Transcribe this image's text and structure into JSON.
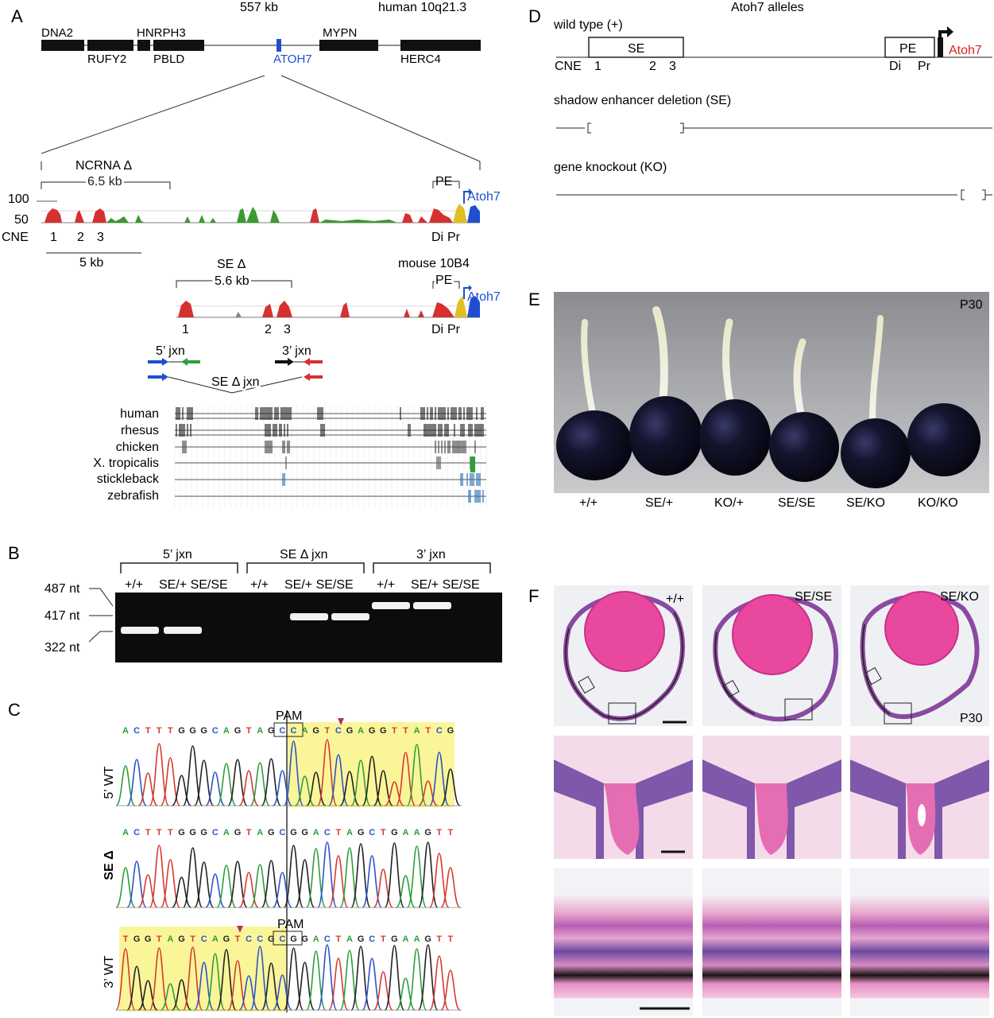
{
  "panels": {
    "A": "A",
    "B": "B",
    "C": "C",
    "D": "D",
    "E": "E",
    "F": "F"
  },
  "panelA": {
    "top_kb": "557 kb",
    "top_locus": "human 10q21.3",
    "genes_upper": [
      "DNA2",
      "HNRPH3",
      "MYPN"
    ],
    "genes_lower": [
      "RUFY2",
      "PBLD",
      "HERC4"
    ],
    "atoh7_human": "ATOH7",
    "ncrna_label": "NCRNA Δ",
    "ncrna_size": "6.5 kb",
    "y100": "100",
    "y50": "50",
    "cne_label": "CNE",
    "cne_numbers": [
      "1",
      "2",
      "3"
    ],
    "pe_label": "PE",
    "atoh7_mouse": "Atoh7",
    "di_label": "Di",
    "pr_label": "Pr",
    "scalebar": "5 kb",
    "se_label": "SE Δ",
    "se_size": "5.6 kb",
    "mouse_locus": "mouse 10B4",
    "jxn5": "5’ jxn",
    "jxn3": "3’ jxn",
    "se_jxn": "SE Δ jxn",
    "species": [
      "human",
      "rhesus",
      "chicken",
      "X. tropicalis",
      "stickleback",
      "zebrafish"
    ]
  },
  "panelB": {
    "groups": [
      "5’ jxn",
      "SE Δ jxn",
      "3’ jxn"
    ],
    "lane_labels": [
      "+/+",
      "SE/+ SE/SE"
    ],
    "sizes": [
      "487 nt",
      "417 nt",
      "322 nt"
    ]
  },
  "panelC": {
    "pam": "PAM",
    "row_labels": [
      "5’ WT",
      "SE Δ",
      "3’ WT"
    ],
    "seq1": "ACTTTGGGCAGTAGCCAGTCGAGGTTATCG",
    "seq2": "ACTTTGGGCAGTAGCGGACTAGCTGAAGTT",
    "seq3": "TGGTAGTCAGTCCGCGGACTAGCTGAAGTT",
    "base_colors": {
      "A": "#2e9e3a",
      "C": "#2b55c8",
      "G": "#222222",
      "T": "#d63a2f"
    }
  },
  "panelD": {
    "title": "Atoh7 alleles",
    "wt": "wild type (+)",
    "se_box": "SE",
    "pe_box": "PE",
    "atoh7": "Atoh7",
    "cne": "CNE",
    "cne_numbers": [
      "1",
      "2",
      "3"
    ],
    "di": "Di",
    "pr": "Pr",
    "se_del": "shadow enhancer deletion (SE)",
    "ko": "gene knockout (KO)"
  },
  "panelE": {
    "age": "P30",
    "genotypes": [
      "+/+",
      "SE/+",
      "KO/+",
      "SE/SE",
      "SE/KO",
      "KO/KO"
    ]
  },
  "panelF": {
    "genotypes": [
      "+/+",
      "SE/SE",
      "SE/KO"
    ],
    "age": "P30"
  },
  "colors": {
    "conserved_red": "#d63030",
    "conserved_green": "#3a9a2e",
    "blue_exon": "#1f4fd0",
    "atoh7_red": "#e02020",
    "atoh7_blue": "#2233cc"
  }
}
